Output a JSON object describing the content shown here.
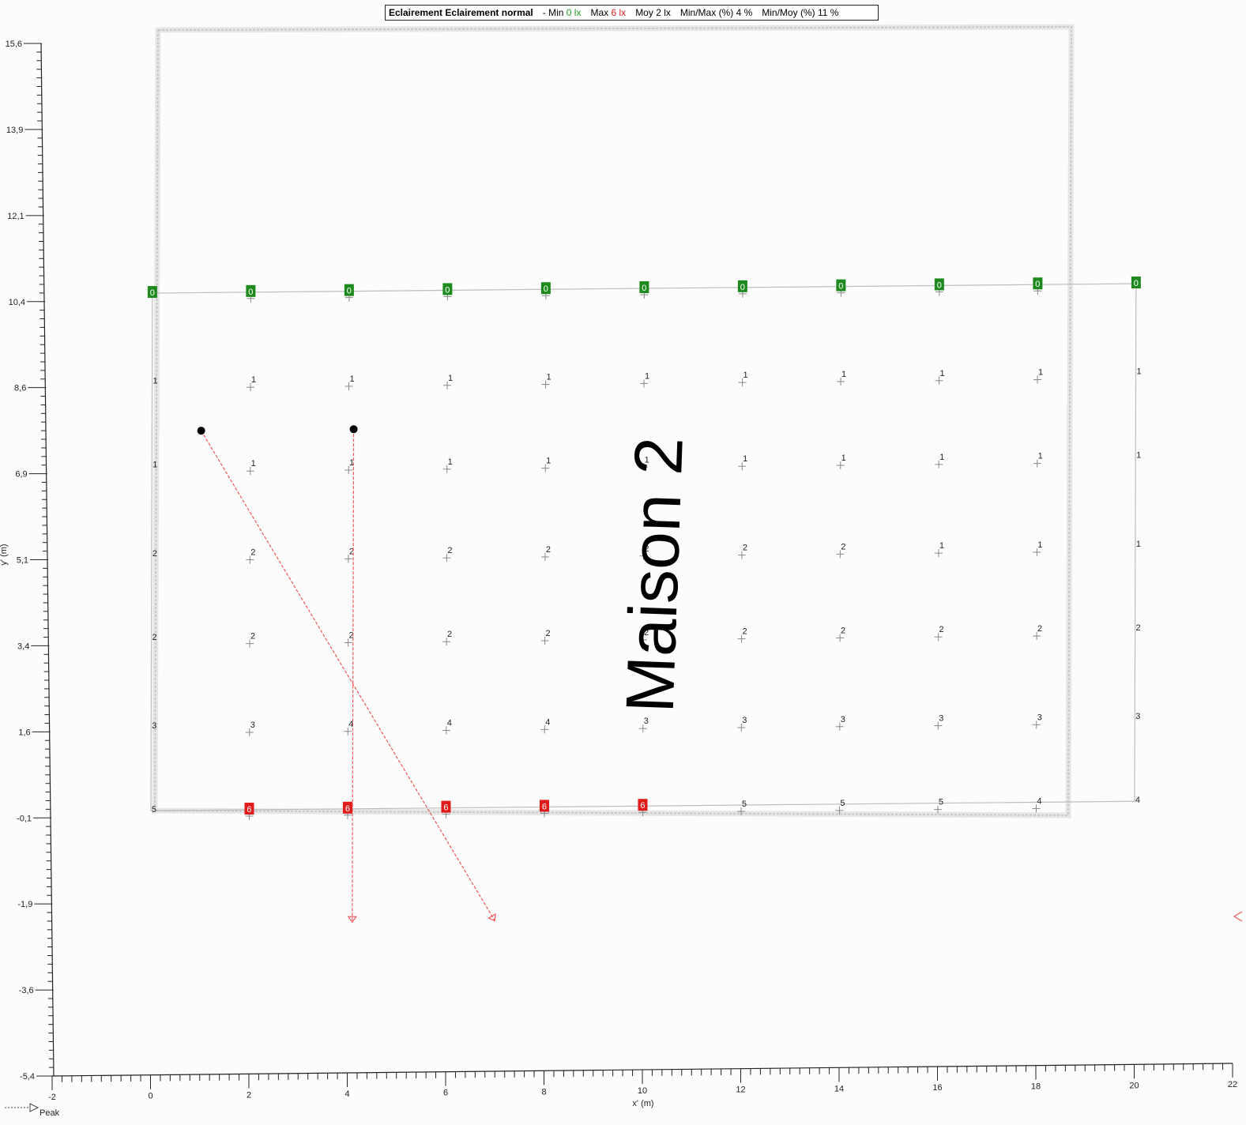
{
  "legend": {
    "calc_label": "Eclairement",
    "calc_name": "Eclairement normal",
    "dash": "-",
    "min_label": "Min",
    "min_value": "0 lx",
    "max_label": "Max",
    "max_value": "6 lx",
    "avg_label": "Moy",
    "avg_value": "2 lx",
    "minmax_label": "Min/Max (%)",
    "minmax_value": "4 %",
    "minavg_label": "Min/Moy (%)",
    "minavg_value": "11 %"
  },
  "room_label": "Maison 2",
  "peak_label": "Peak",
  "colors": {
    "min_badge": "#1e8a1e",
    "max_badge": "#e01b1b",
    "axis": "#222222",
    "grid_outline": "#bdbdbd",
    "building_outline": "#c8c8c8",
    "luminaire_aim": "#ef5a5a",
    "luminaire": "#000000"
  },
  "chart_data": {
    "type": "heatmap",
    "title": "",
    "xlabel": "x' (m)",
    "ylabel": "y' (m)",
    "xlim": [
      -2,
      22
    ],
    "ylim": [
      -5.4,
      15.6
    ],
    "x_ticks": [
      "-2",
      "0",
      "2",
      "4",
      "6",
      "8",
      "10",
      "12",
      "14",
      "16",
      "18",
      "20",
      "22"
    ],
    "y_ticks": [
      "15,6",
      "13,9",
      "12,1",
      "10,4",
      "8,6",
      "6,9",
      "5,1",
      "3,4",
      "1,6",
      "-0,1",
      "-1,9",
      "-3,6",
      "-5,4"
    ],
    "grid_x": [
      0,
      2,
      4,
      6,
      8,
      10,
      12,
      14,
      16,
      18,
      20
    ],
    "grid_y": [
      10.4,
      8.6,
      6.9,
      5.1,
      3.4,
      1.6,
      -0.1
    ],
    "values": [
      [
        0,
        0,
        0,
        0,
        0,
        0,
        0,
        0,
        0,
        0,
        0
      ],
      [
        1,
        1,
        1,
        1,
        1,
        1,
        1,
        1,
        1,
        1,
        1
      ],
      [
        1,
        1,
        1,
        1,
        1,
        1,
        1,
        1,
        1,
        1,
        1
      ],
      [
        2,
        2,
        2,
        2,
        2,
        2,
        2,
        2,
        1,
        1,
        1
      ],
      [
        2,
        2,
        2,
        2,
        2,
        2,
        2,
        2,
        2,
        2,
        2
      ],
      [
        3,
        3,
        4,
        4,
        4,
        3,
        3,
        3,
        3,
        3,
        3
      ],
      [
        5,
        6,
        6,
        6,
        6,
        6,
        5,
        5,
        5,
        4,
        4
      ]
    ],
    "min_value": 0,
    "max_value": 6,
    "luminaires": [
      {
        "x": 1.0,
        "y": 7.6,
        "aim_x": 7.0,
        "aim_y": -2.4
      },
      {
        "x": 4.1,
        "y": 7.6,
        "aim_x": 4.1,
        "aim_y": -2.4
      }
    ]
  }
}
